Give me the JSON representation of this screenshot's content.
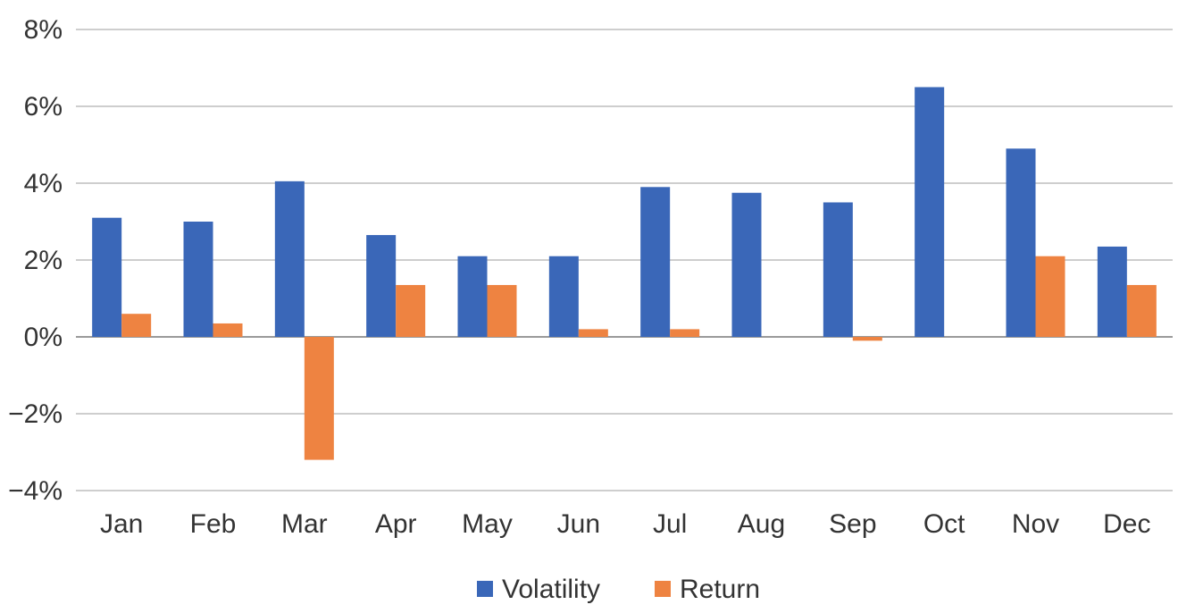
{
  "chart_data": {
    "type": "bar",
    "categories": [
      "Jan",
      "Feb",
      "Mar",
      "Apr",
      "May",
      "Jun",
      "Jul",
      "Aug",
      "Sep",
      "Oct",
      "Nov",
      "Dec"
    ],
    "series": [
      {
        "name": "Volatility",
        "color": "#3a67b8",
        "values": [
          3.1,
          3.0,
          4.05,
          2.65,
          2.1,
          2.1,
          3.9,
          3.75,
          3.5,
          6.5,
          4.9,
          2.35
        ]
      },
      {
        "name": "Return",
        "color": "#ee8341",
        "values": [
          0.6,
          0.35,
          -3.2,
          1.35,
          1.35,
          0.2,
          0.2,
          0.0,
          -0.1,
          0.0,
          2.1,
          1.35
        ]
      }
    ],
    "y_ticks": [
      "8%",
      "6%",
      "4%",
      "2%",
      "0%",
      "−2%",
      "−4%"
    ],
    "y_tick_values": [
      8,
      6,
      4,
      2,
      0,
      -2,
      -4
    ],
    "ylim": [
      -4,
      8
    ],
    "grid": true,
    "legend_position": "bottom",
    "title": "",
    "xlabel": "",
    "ylabel": ""
  }
}
